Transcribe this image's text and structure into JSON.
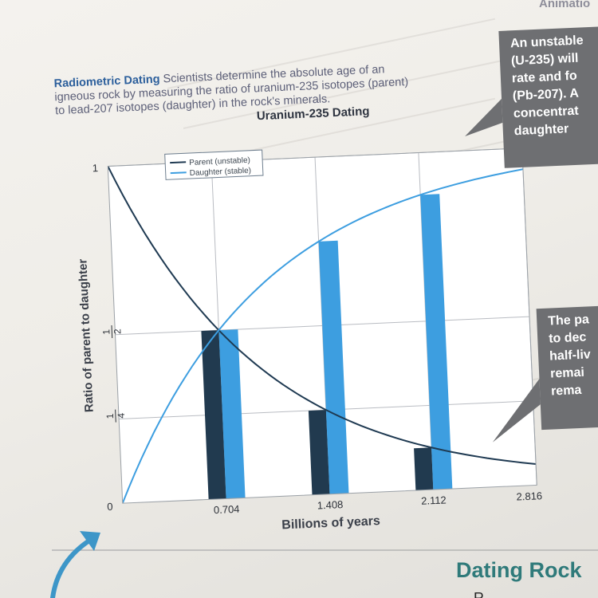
{
  "header": {
    "corner_text": "Animatio"
  },
  "caption": {
    "title": "Radiometric Dating",
    "lines": [
      " Scientists determine the absolute age of an",
      "igneous rock by measuring the ratio of uranium-235 isotopes (parent)",
      "to lead-207 isotopes (daughter) in the rock's minerals."
    ]
  },
  "chart_data": {
    "type": "line",
    "title": "Uranium-235 Dating",
    "xlabel": "Billions of years",
    "ylabel": "Ratio of parent to daughter",
    "x_ticks": [
      "0.704",
      "1.408",
      "2.112",
      "2.816"
    ],
    "y_ticks": [
      "0",
      "1/4",
      "1/2",
      "1"
    ],
    "xlim": [
      0,
      2.816
    ],
    "ylim": [
      0,
      1
    ],
    "grid": true,
    "legend": {
      "position": "top-left",
      "entries": [
        "Parent (unstable)",
        "Daughter (stable)"
      ]
    },
    "series": [
      {
        "name": "Parent (unstable)",
        "color": "#1f3a52",
        "x": [
          0,
          0.352,
          0.704,
          1.056,
          1.408,
          1.76,
          2.112,
          2.464,
          2.816
        ],
        "y": [
          1,
          0.707,
          0.5,
          0.354,
          0.25,
          0.177,
          0.125,
          0.088,
          0.0625
        ]
      },
      {
        "name": "Daughter (stable)",
        "color": "#3d9ee0",
        "x": [
          0,
          0.352,
          0.704,
          1.056,
          1.408,
          1.76,
          2.112,
          2.464,
          2.816
        ],
        "y": [
          0,
          0.293,
          0.5,
          0.646,
          0.75,
          0.823,
          0.875,
          0.912,
          0.9375
        ]
      }
    ],
    "bars": [
      {
        "x": 0.704,
        "parent": 0.5,
        "daughter": 0.5
      },
      {
        "x": 1.408,
        "parent": 0.25,
        "daughter": 0.75
      },
      {
        "x": 2.112,
        "parent": 0.125,
        "daughter": 0.875
      }
    ],
    "bar_colors": {
      "parent": "#213a4f",
      "daughter": "#3d9ee0"
    }
  },
  "callout_top": {
    "lines": [
      "An unstable",
      "(U-235) will",
      "rate and fo",
      "(Pb-207). A",
      "concentrat",
      "daughter"
    ]
  },
  "callout_bottom": {
    "lines": [
      "The pa",
      "to dec",
      "half-liv",
      "remai",
      "rema"
    ]
  },
  "footer": {
    "heading": "Dating Rock",
    "fragment": "R"
  }
}
